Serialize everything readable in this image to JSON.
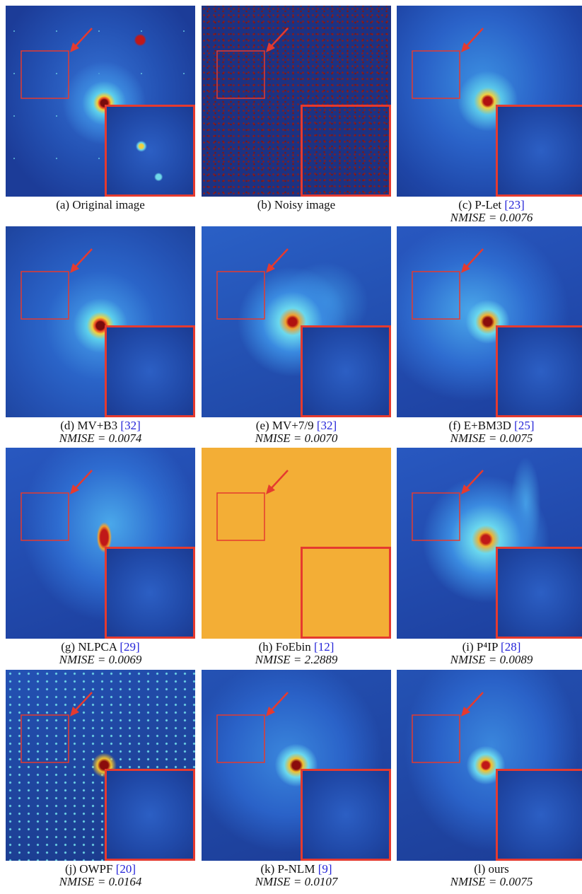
{
  "figure": {
    "panels": [
      {
        "caption": "(a) Original image"
      },
      {
        "caption": "(b) Noisy image"
      },
      {
        "caption": "(c) P-Let",
        "ref": "[23]",
        "metric": "NMISE = 0.0076"
      },
      {
        "caption": "(d) MV+B3",
        "ref": "[32]",
        "metric": "NMISE = 0.0074"
      },
      {
        "caption": "(e) MV+7/9",
        "ref": "[32]",
        "metric": "NMISE = 0.0070"
      },
      {
        "caption": "(f) E+BM3D",
        "ref": "[25]",
        "metric": "NMISE = 0.0075"
      },
      {
        "caption": "(g) NLPCA",
        "ref": "[29]",
        "metric": "NMISE = 0.0069"
      },
      {
        "caption": "(h) FoEbin",
        "ref": "[12]",
        "metric": "NMISE = 2.2889"
      },
      {
        "caption": "(i) P⁴IP",
        "ref": "[28]",
        "metric": "NMISE = 0.0089"
      },
      {
        "caption": "(j) OWPF",
        "ref": "[20]",
        "metric": "NMISE = 0.0164"
      },
      {
        "caption": "(k) P-NLM",
        "ref": "[9]",
        "metric": "NMISE = 0.0107"
      },
      {
        "caption": "(l) ours",
        "metric": "NMISE = 0.0075"
      }
    ]
  }
}
